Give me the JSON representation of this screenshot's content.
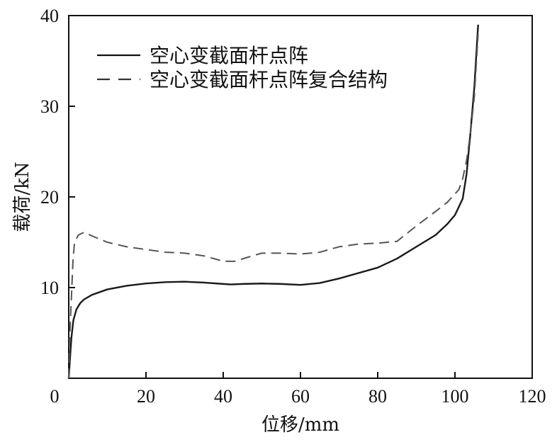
{
  "chart_data": {
    "type": "line",
    "xlabel": "位移/mm",
    "ylabel": "载荷/kN",
    "xlim": [
      0,
      120
    ],
    "ylim": [
      0,
      40
    ],
    "x_ticks": [
      0,
      20,
      40,
      60,
      80,
      100,
      120
    ],
    "y_ticks": [
      10,
      20,
      30,
      40
    ],
    "x_tick_labels": [
      "0",
      "20",
      "40",
      "60",
      "80",
      "100",
      "120"
    ],
    "y_tick_labels": [
      "10",
      "20",
      "30",
      "40"
    ],
    "grid": false,
    "legend_position": "top-left",
    "series": [
      {
        "name": "空心变截面杆点阵",
        "style": "solid",
        "color": "#1a1a1a",
        "points": [
          [
            0,
            0
          ],
          [
            0.3,
            2
          ],
          [
            0.7,
            4.5
          ],
          [
            1.2,
            6.4
          ],
          [
            2,
            7.6
          ],
          [
            3,
            8.3
          ],
          [
            4,
            8.7
          ],
          [
            6,
            9.2
          ],
          [
            10,
            9.8
          ],
          [
            15,
            10.2
          ],
          [
            20,
            10.45
          ],
          [
            25,
            10.6
          ],
          [
            30,
            10.65
          ],
          [
            35,
            10.55
          ],
          [
            40,
            10.4
          ],
          [
            42,
            10.35
          ],
          [
            45,
            10.4
          ],
          [
            50,
            10.45
          ],
          [
            55,
            10.4
          ],
          [
            60,
            10.3
          ],
          [
            65,
            10.5
          ],
          [
            70,
            11.0
          ],
          [
            75,
            11.6
          ],
          [
            80,
            12.2
          ],
          [
            85,
            13.2
          ],
          [
            90,
            14.5
          ],
          [
            95,
            15.8
          ],
          [
            98,
            17.0
          ],
          [
            100,
            18.0
          ],
          [
            102,
            19.8
          ],
          [
            103,
            22.5
          ],
          [
            104,
            27
          ],
          [
            105,
            32
          ],
          [
            106,
            39
          ]
        ]
      },
      {
        "name": "空心变截面杆点阵复合结构",
        "style": "dashed",
        "color": "#555555",
        "points": [
          [
            0,
            0
          ],
          [
            0.2,
            4
          ],
          [
            0.5,
            7
          ],
          [
            0.8,
            10
          ],
          [
            1.1,
            13
          ],
          [
            1.5,
            15.0
          ],
          [
            2.5,
            15.8
          ],
          [
            4,
            16.1
          ],
          [
            6,
            15.7
          ],
          [
            10,
            15.0
          ],
          [
            15,
            14.5
          ],
          [
            20,
            14.2
          ],
          [
            25,
            13.9
          ],
          [
            30,
            13.8
          ],
          [
            35,
            13.5
          ],
          [
            40,
            12.9
          ],
          [
            43,
            12.9
          ],
          [
            46,
            13.3
          ],
          [
            50,
            13.8
          ],
          [
            55,
            13.8
          ],
          [
            60,
            13.7
          ],
          [
            65,
            13.9
          ],
          [
            70,
            14.5
          ],
          [
            75,
            14.8
          ],
          [
            80,
            14.9
          ],
          [
            85,
            15.1
          ],
          [
            90,
            16.8
          ],
          [
            95,
            18.4
          ],
          [
            98,
            19.4
          ],
          [
            101,
            20.8
          ],
          [
            102,
            22
          ],
          [
            103,
            24
          ],
          [
            104,
            27
          ],
          [
            105,
            31
          ],
          [
            106,
            38
          ]
        ]
      }
    ]
  }
}
